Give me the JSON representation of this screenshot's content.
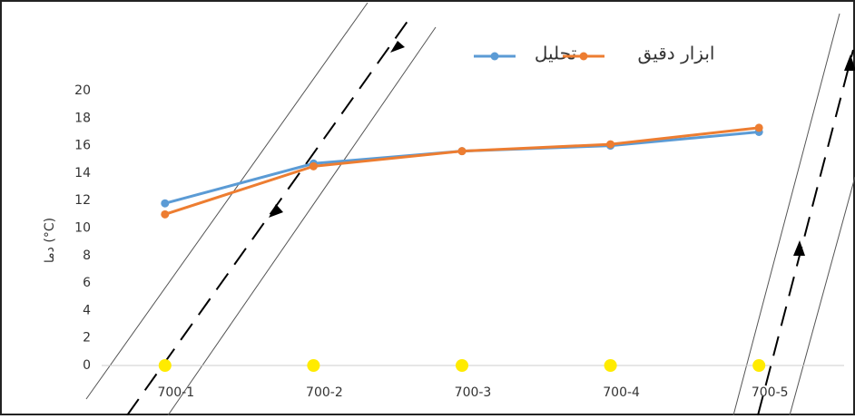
{
  "chart_data": {
    "type": "line",
    "y_label": "دما (°C)",
    "categories": [
      "700-1",
      "700-2",
      "700-3",
      "700-4",
      "700-5"
    ],
    "series": [
      {
        "name": "تحليل",
        "color": "#5b9bd5",
        "values": [
          11.8,
          14.7,
          15.6,
          16.0,
          17.0
        ]
      },
      {
        "name": "ابزار دقيق",
        "color": "#ed7d31",
        "values": [
          11.0,
          14.5,
          15.6,
          16.1,
          17.3
        ]
      }
    ],
    "ylim": [
      0,
      20
    ],
    "yticks": [
      0,
      2,
      4,
      6,
      8,
      10,
      12,
      14,
      16,
      18,
      20
    ],
    "grid": false
  }
}
